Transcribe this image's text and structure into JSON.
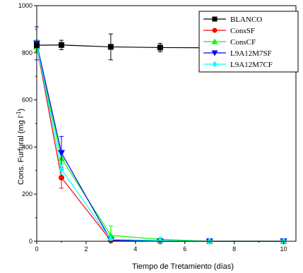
{
  "chart_data": {
    "type": "line",
    "title": "",
    "xlabel": "Tiempo de Tretamiento (días)",
    "ylabel": "Cons. Furfural (mg l",
    "ylabel_sup": "-1",
    "ylabel_close": ")",
    "xlim": [
      0,
      10.5
    ],
    "ylim": [
      0,
      1000
    ],
    "xticks": [
      0,
      2,
      4,
      6,
      8,
      10
    ],
    "yticks": [
      0,
      200,
      400,
      600,
      800,
      1000
    ],
    "legend_position": "top-right",
    "series": [
      {
        "name": "BLANCO",
        "color": "#000000",
        "marker": "square",
        "points": [
          {
            "x": 0,
            "y": 832,
            "err": 10
          },
          {
            "x": 1,
            "y": 833,
            "err": 20
          },
          {
            "x": 3,
            "y": 825,
            "err": 55
          },
          {
            "x": 5,
            "y": 822,
            "err": 18
          },
          {
            "x": 7,
            "y": 821,
            "err": 6
          },
          {
            "x": 10,
            "y": 820,
            "err": 6
          }
        ]
      },
      {
        "name": "ConsSF",
        "color": "#ff0000",
        "marker": "circle",
        "points": [
          {
            "x": 0,
            "y": 828,
            "err": 20
          },
          {
            "x": 1,
            "y": 270,
            "err": 45
          },
          {
            "x": 3,
            "y": 3,
            "err": 0
          },
          {
            "x": 5,
            "y": 0,
            "err": 0
          },
          {
            "x": 7,
            "y": 0,
            "err": 0
          },
          {
            "x": 10,
            "y": 0,
            "err": 0
          }
        ]
      },
      {
        "name": "ConsCF",
        "color": "#00ff00",
        "marker": "triangle-up",
        "points": [
          {
            "x": 0,
            "y": 826,
            "err": 20
          },
          {
            "x": 1,
            "y": 352,
            "err": 20
          },
          {
            "x": 3,
            "y": 25,
            "err": 40
          },
          {
            "x": 5,
            "y": 8,
            "err": 5
          },
          {
            "x": 7,
            "y": 0,
            "err": 0
          },
          {
            "x": 10,
            "y": 0,
            "err": 0
          }
        ]
      },
      {
        "name": "L9A12M7SF",
        "color": "#0000ff",
        "marker": "triangle-down",
        "points": [
          {
            "x": 0,
            "y": 840,
            "err": 70
          },
          {
            "x": 1,
            "y": 375,
            "err": 70
          },
          {
            "x": 3,
            "y": 5,
            "err": 0
          },
          {
            "x": 5,
            "y": 0,
            "err": 0
          },
          {
            "x": 7,
            "y": 0,
            "err": 0
          },
          {
            "x": 10,
            "y": 0,
            "err": 0
          }
        ]
      },
      {
        "name": "L9A12M7CF",
        "color": "#00ffff",
        "marker": "diamond",
        "points": [
          {
            "x": 0,
            "y": 835,
            "err": 20
          },
          {
            "x": 1,
            "y": 305,
            "err": 20
          },
          {
            "x": 3,
            "y": 8,
            "err": 0
          },
          {
            "x": 5,
            "y": 3,
            "err": 0
          },
          {
            "x": 7,
            "y": 0,
            "err": 0
          },
          {
            "x": 10,
            "y": 0,
            "err": 0
          }
        ]
      }
    ]
  }
}
